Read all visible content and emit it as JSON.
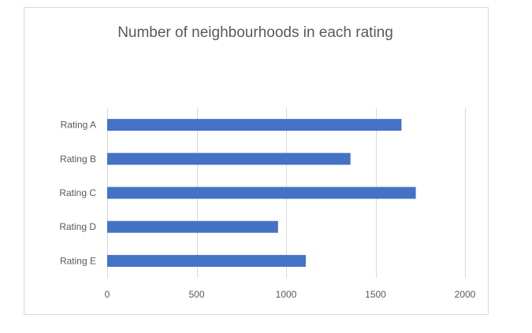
{
  "chart_data": {
    "type": "bar",
    "orientation": "horizontal",
    "title": "Number of neighbourhoods in each rating",
    "xlabel": "",
    "ylabel": "",
    "categories": [
      "Rating A",
      "Rating B",
      "Rating C",
      "Rating D",
      "Rating E"
    ],
    "values": [
      1645,
      1360,
      1725,
      955,
      1110
    ],
    "xlim": [
      0,
      2000
    ],
    "x_ticks": [
      0,
      500,
      1000,
      1500,
      2000
    ],
    "grid": "vertical",
    "legend": "none",
    "bar_color": "#4472c4"
  }
}
